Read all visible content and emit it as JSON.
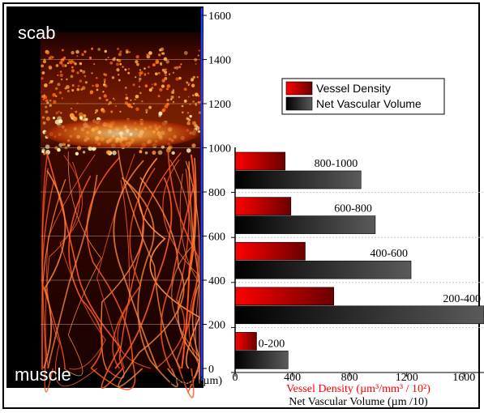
{
  "image_panel": {
    "top_label": "scab",
    "bottom_label": "muscle",
    "depth_axis_label": "Depth (µm)",
    "depth_ticks": [
      0,
      200,
      400,
      600,
      800,
      1000,
      1200,
      1400,
      1600
    ],
    "depth_range": [
      0,
      1600
    ]
  },
  "chart_data": {
    "type": "bar",
    "orientation": "horizontal",
    "categories": [
      "0-200",
      "200-400",
      "400-600",
      "600-800",
      "800-1000"
    ],
    "series": [
      {
        "name": "Vessel Density",
        "values": [
          150,
          690,
          490,
          390,
          350
        ],
        "color": "#ff0000"
      },
      {
        "name": "Net Vascular Volume",
        "values": [
          370,
          1740,
          1230,
          980,
          880
        ],
        "color": "#222222"
      }
    ],
    "xlim": [
      0,
      1740
    ],
    "x_ticks": [
      0,
      400,
      800,
      1200,
      1600
    ],
    "xlabel_1": "Vessel Density (µm³/mm³ / 10²)",
    "xlabel_2": "Net Vascular Volume (µm /10)",
    "xlabel_1_color": "#ff0000",
    "legend_position": "top-right",
    "grid": false
  },
  "colors": {
    "accent": "#ff0000",
    "dark": "#222222",
    "axis_blue": "#1f3cff"
  }
}
